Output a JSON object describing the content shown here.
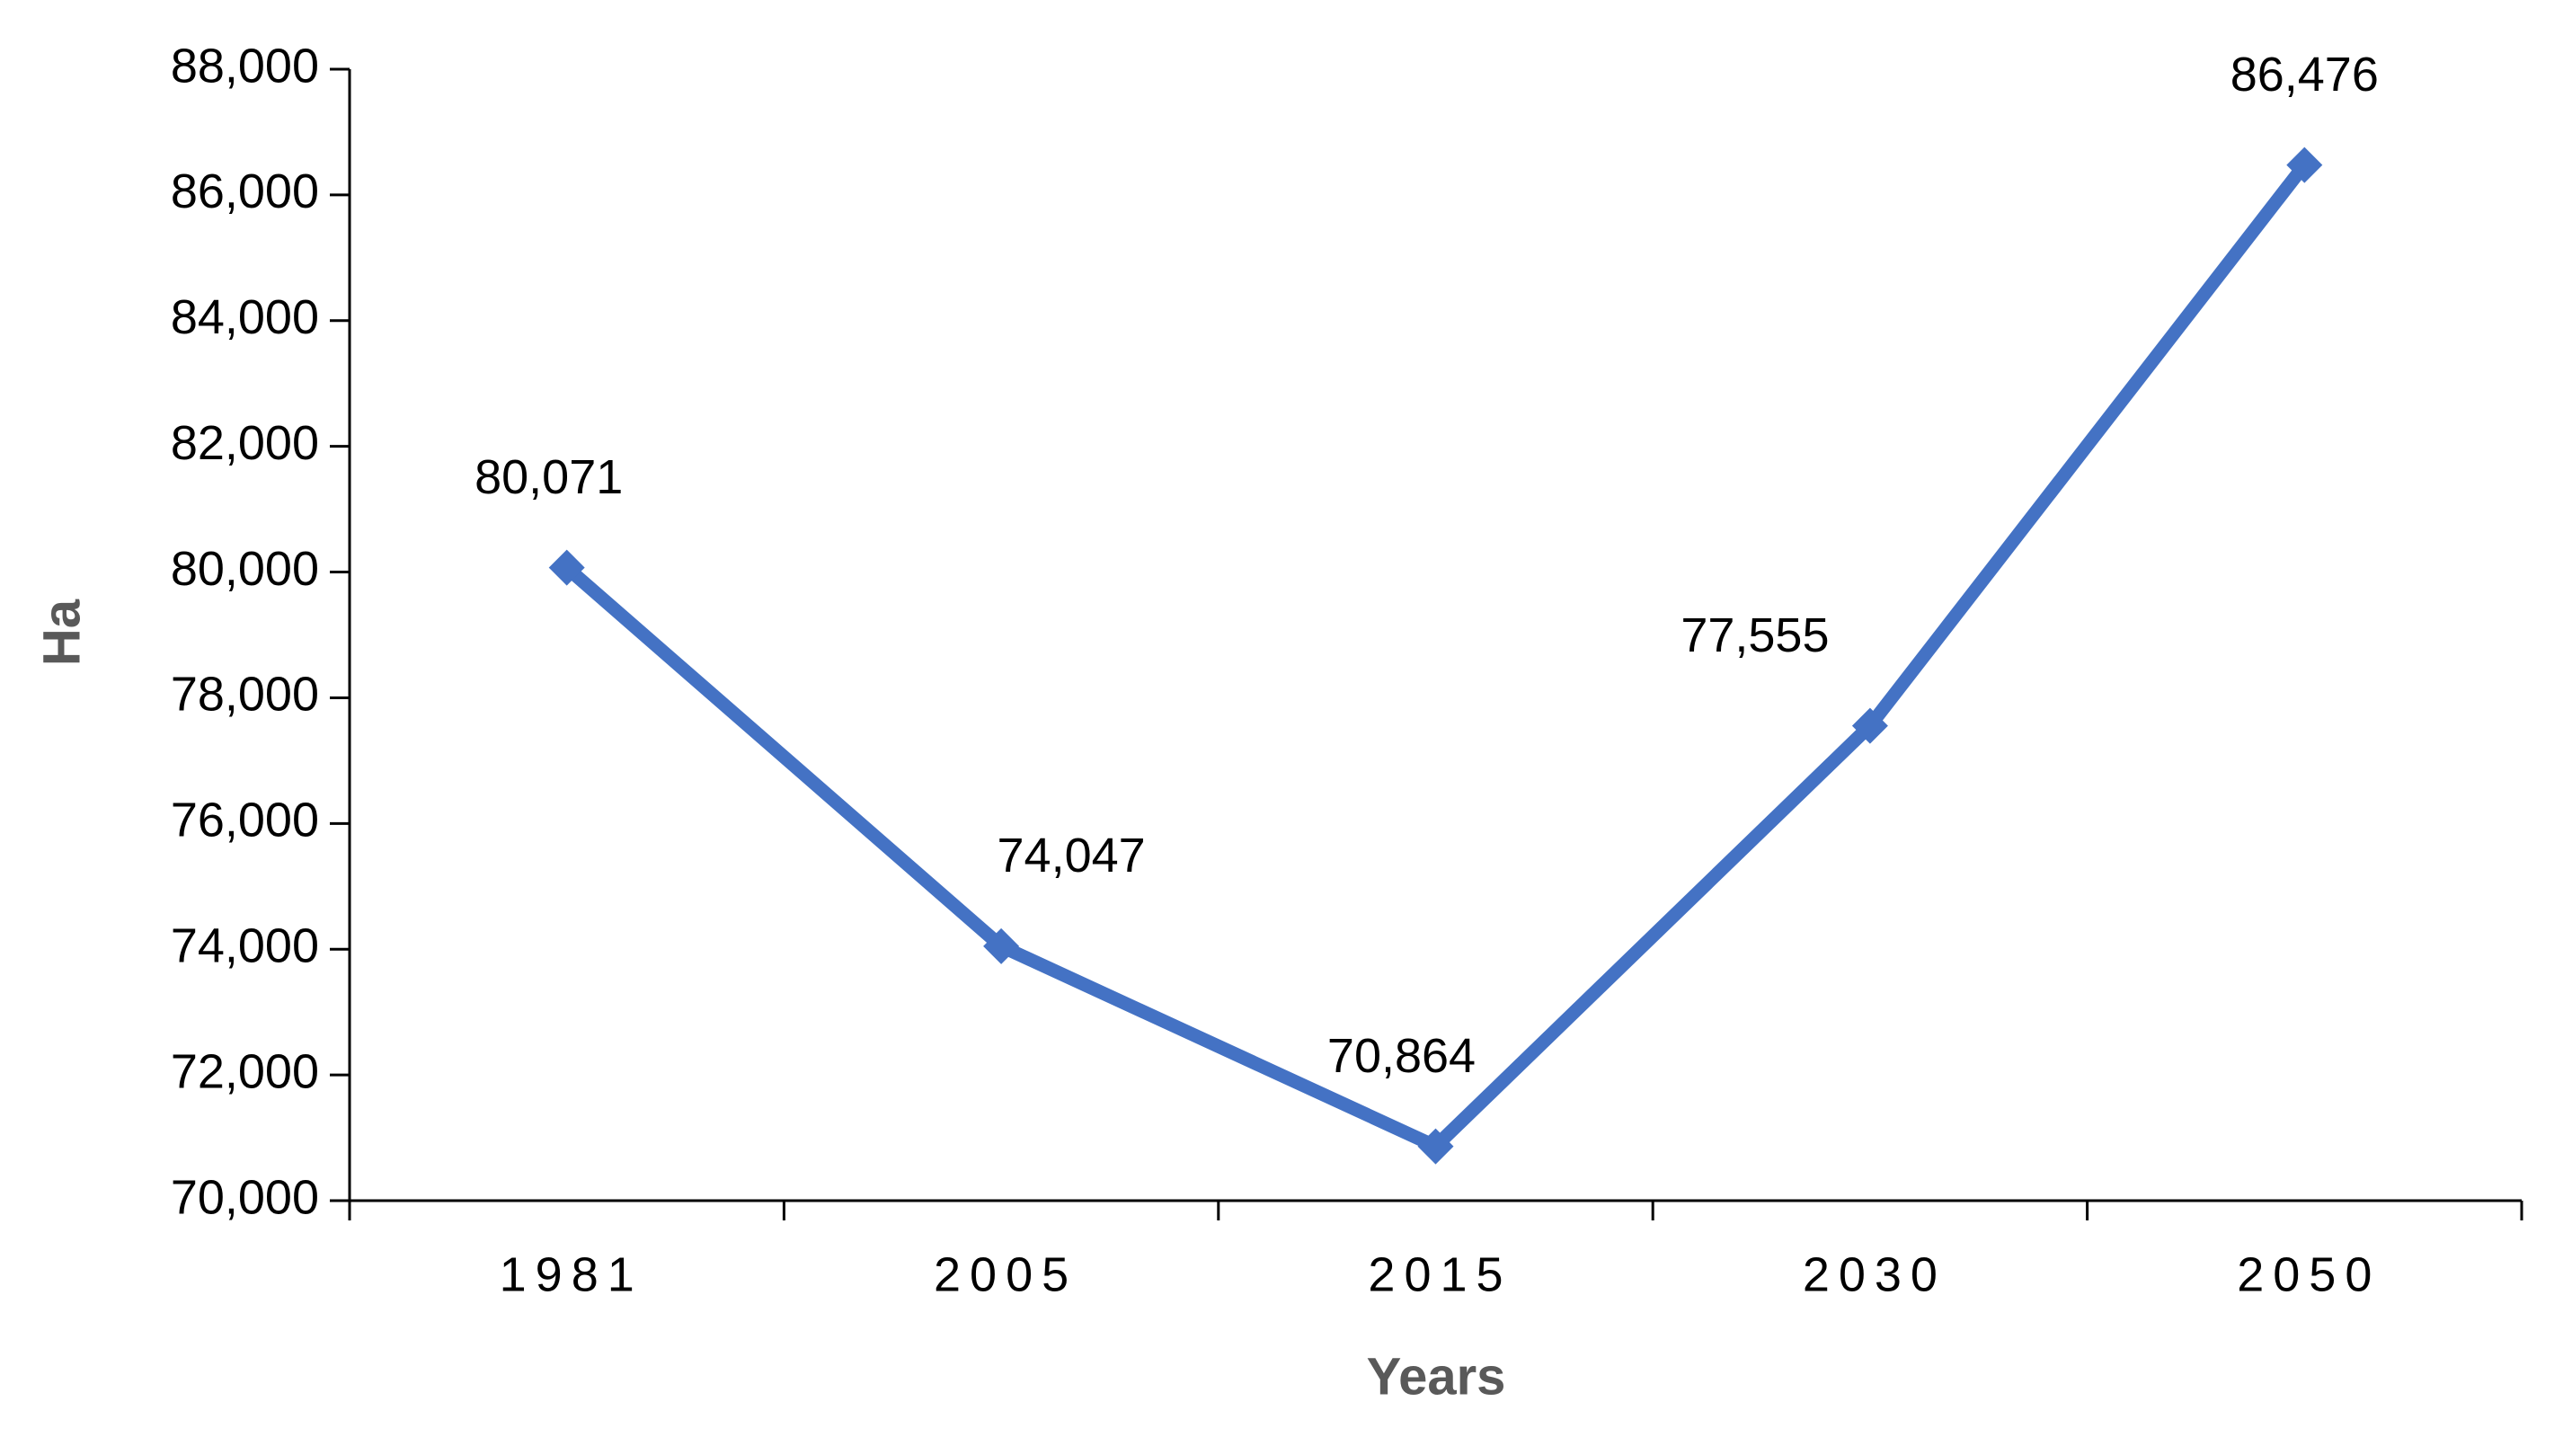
{
  "chart_data": {
    "type": "line",
    "x_label": "Years",
    "y_label": "Ha",
    "categories": [
      "1981",
      "2005",
      "2015",
      "2030",
      "2050"
    ],
    "series": [
      {
        "name": "Ha",
        "color": "#4472c4",
        "values": [
          80071,
          74047,
          70864,
          77555,
          86476
        ],
        "value_labels": [
          "80,071",
          "74,047",
          "70,864",
          "77,555",
          "86,476"
        ]
      }
    ],
    "ylim": [
      70000,
      88000
    ],
    "yticks": [
      {
        "value": 70000,
        "label": "70,000"
      },
      {
        "value": 72000,
        "label": "72,000"
      },
      {
        "value": 74000,
        "label": "74,000"
      },
      {
        "value": 76000,
        "label": "76,000"
      },
      {
        "value": 78000,
        "label": "78,000"
      },
      {
        "value": 80000,
        "label": "80,000"
      },
      {
        "value": 82000,
        "label": "82,000"
      },
      {
        "value": 84000,
        "label": "84,000"
      },
      {
        "value": 86000,
        "label": "86,000"
      },
      {
        "value": 88000,
        "label": "88,000"
      }
    ],
    "grid": false,
    "legend": false
  }
}
